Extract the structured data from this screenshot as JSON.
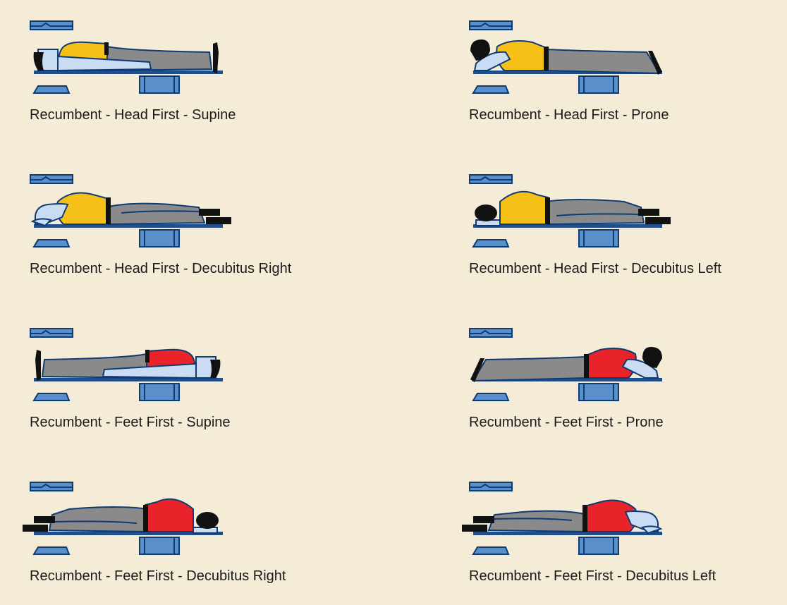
{
  "colors": {
    "background": "#f4ecd6",
    "equipment_fill": "#5b8fcb",
    "equipment_dark": "#0f3b73",
    "table_bar": "#1f4e8a",
    "skin": "#c9dcf4",
    "outline": "#0f3b73",
    "legs": "#8a8a8a",
    "hair": "#111111",
    "torso_head_first": "#f5c018",
    "torso_feet_first": "#e8232a"
  },
  "positions": [
    {
      "label": "Recumbent - Head First - Supine",
      "direction": "head-first",
      "view": "supine"
    },
    {
      "label": "Recumbent - Head First - Prone",
      "direction": "head-first",
      "view": "prone"
    },
    {
      "label": "Recumbent - Head First - Decubitus Right",
      "direction": "head-first",
      "view": "decubitus"
    },
    {
      "label": "Recumbent - Head First - Decubitus Left",
      "direction": "head-first",
      "view": "decubitus-back"
    },
    {
      "label": "Recumbent - Feet First - Supine",
      "direction": "feet-first",
      "view": "supine"
    },
    {
      "label": "Recumbent - Feet First - Prone",
      "direction": "feet-first",
      "view": "prone"
    },
    {
      "label": "Recumbent - Feet First - Decubitus Right",
      "direction": "feet-first",
      "view": "decubitus-back"
    },
    {
      "label": "Recumbent - Feet First - Decubitus Left",
      "direction": "feet-first",
      "view": "decubitus"
    }
  ]
}
